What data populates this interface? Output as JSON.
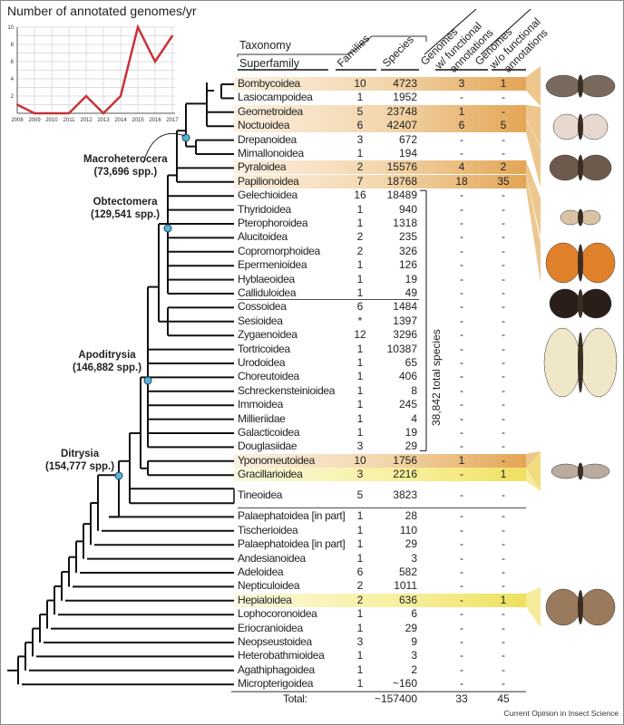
{
  "chart_data": {
    "type": "line",
    "title": "Number of annotated genomes/yr",
    "x": [
      2008,
      2009,
      2010,
      2011,
      2012,
      2013,
      2014,
      2015,
      2016,
      2017
    ],
    "values": [
      1,
      0,
      0,
      0,
      2,
      0,
      2,
      10,
      6,
      9
    ],
    "yticks": [
      2,
      4,
      6,
      8,
      10
    ],
    "ylim": [
      0,
      10
    ],
    "grid": true,
    "color": "#c8323a"
  },
  "header": {
    "taxonomy": "Taxonomy",
    "superfamily": "Superfamily",
    "families": "Families",
    "species": "Species",
    "genomes_with": [
      "Genomes",
      "w/ functional",
      "annotations"
    ],
    "genomes_without": [
      "Genomes",
      "w/o functional",
      "annotations"
    ]
  },
  "clades": [
    {
      "name": "Macroheterocera",
      "spp": "(73,696 spp.)"
    },
    {
      "name": "Obtectomera",
      "spp": "(129,541 spp.)"
    },
    {
      "name": "Apoditrysia",
      "spp": "(146,882 spp.)"
    },
    {
      "name": "Ditrysia",
      "spp": "(154,777 spp.)"
    }
  ],
  "bracket_label": "38,842 total species",
  "rows": [
    {
      "name": "Bombycoidea",
      "families": "10",
      "species": "4723",
      "with": "3",
      "without": "1",
      "highlight": "orange"
    },
    {
      "name": "Lasiocampoidea",
      "families": "1",
      "species": "1952",
      "with": "-",
      "without": "-"
    },
    {
      "name": "Geometroidea",
      "families": "5",
      "species": "23748",
      "with": "1",
      "without": "-",
      "highlight": "orange"
    },
    {
      "name": "Noctuoidea",
      "families": "6",
      "species": "42407",
      "with": "6",
      "without": "5",
      "highlight": "orange"
    },
    {
      "name": "Drepanoidea",
      "families": "3",
      "species": "672",
      "with": "-",
      "without": "-"
    },
    {
      "name": "Mimallonoidea",
      "families": "1",
      "species": "194",
      "with": "-",
      "without": "-"
    },
    {
      "name": "Pyraloidea",
      "families": "2",
      "species": "15576",
      "with": "4",
      "without": "2",
      "highlight": "orange"
    },
    {
      "name": "Papilionoidea",
      "families": "7",
      "species": "18768",
      "with": "18",
      "without": "35",
      "highlight": "orange"
    },
    {
      "name": "Gelechioidea",
      "families": "16",
      "species": "18489",
      "with": "-",
      "without": "-"
    },
    {
      "name": "Thyridoidea",
      "families": "1",
      "species": "940",
      "with": "-",
      "without": "-"
    },
    {
      "name": "Pterophoroidea",
      "families": "1",
      "species": "1318",
      "with": "-",
      "without": "-"
    },
    {
      "name": "Alucitoidea",
      "families": "2",
      "species": "235",
      "with": "-",
      "without": "-"
    },
    {
      "name": "Copromorphoidea",
      "families": "2",
      "species": "326",
      "with": "-",
      "without": "-"
    },
    {
      "name": "Epermenioidea",
      "families": "1",
      "species": "126",
      "with": "-",
      "without": "-"
    },
    {
      "name": "Hyblaeoidea",
      "families": "1",
      "species": "19",
      "with": "-",
      "without": "-"
    },
    {
      "name": "Calliduloidea",
      "families": "1",
      "species": "49",
      "with": "-",
      "without": "-"
    },
    {
      "name": "Cossoidea",
      "families": "6",
      "species": "1484",
      "with": "-",
      "without": "-"
    },
    {
      "name": "Sesioidea",
      "families": "*",
      "species": "1397",
      "with": "-",
      "without": "-"
    },
    {
      "name": "Zygaenoidea",
      "families": "12",
      "species": "3296",
      "with": "-",
      "without": "-"
    },
    {
      "name": "Tortricoidea",
      "families": "1",
      "species": "10387",
      "with": "-",
      "without": "-"
    },
    {
      "name": "Urodoidea",
      "families": "1",
      "species": "65",
      "with": "-",
      "without": "-"
    },
    {
      "name": "Choreutoidea",
      "families": "1",
      "species": "406",
      "with": "-",
      "without": "-"
    },
    {
      "name": "Schreckensteinioidea",
      "families": "1",
      "species": "8",
      "with": "-",
      "without": "-"
    },
    {
      "name": "Immoidea",
      "families": "1",
      "species": "245",
      "with": "-",
      "without": "-"
    },
    {
      "name": "Millieriidae",
      "families": "1",
      "species": "4",
      "with": "-",
      "without": "-"
    },
    {
      "name": "Galacticoidea",
      "families": "1",
      "species": "19",
      "with": "-",
      "without": "-"
    },
    {
      "name": "Douglasiidae",
      "families": "3",
      "species": "29",
      "with": "-",
      "without": "-"
    },
    {
      "name": "Yponomeutoidea",
      "families": "10",
      "species": "1756",
      "with": "1",
      "without": "-",
      "highlight": "orange"
    },
    {
      "name": "Gracillarioidea",
      "families": "3",
      "species": "2216",
      "with": "-",
      "without": "1",
      "highlight": "yellow"
    },
    {
      "name": "Tineoidea",
      "families": "5",
      "species": "3823",
      "with": "-",
      "without": "-"
    },
    {
      "name": "Palaephatoidea [in part]",
      "families": "1",
      "species": "28",
      "with": "-",
      "without": "-"
    },
    {
      "name": "Tischerioidea",
      "families": "1",
      "species": "110",
      "with": "-",
      "without": "-"
    },
    {
      "name": "Palaephatoidea [in part]",
      "families": "1",
      "species": "29",
      "with": "-",
      "without": "-"
    },
    {
      "name": "Andesianoidea",
      "families": "1",
      "species": "3",
      "with": "-",
      "without": "-"
    },
    {
      "name": "Adeloidea",
      "families": "6",
      "species": "582",
      "with": "-",
      "without": "-"
    },
    {
      "name": "Nepticuloidea",
      "families": "2",
      "species": "1011",
      "with": "-",
      "without": "-"
    },
    {
      "name": "Hepialoidea",
      "families": "2",
      "species": "636",
      "with": "-",
      "without": "1",
      "highlight": "yellow"
    },
    {
      "name": "Lophocoronoidea",
      "families": "1",
      "species": "6",
      "with": "-",
      "without": "-"
    },
    {
      "name": "Eriocranioidea",
      "families": "1",
      "species": "29",
      "with": "-",
      "without": "-"
    },
    {
      "name": "Neopseustoidea",
      "families": "3",
      "species": "9",
      "with": "-",
      "without": "-"
    },
    {
      "name": "Heterobathmioidea",
      "families": "1",
      "species": "3",
      "with": "-",
      "without": "-"
    },
    {
      "name": "Agathiphagoidea",
      "families": "1",
      "species": "2",
      "with": "-",
      "without": "-"
    },
    {
      "name": "Micropterigoidea",
      "families": "1",
      "species": "~160",
      "with": "-",
      "without": "-"
    }
  ],
  "total": {
    "label": "Total:",
    "species": "~157400",
    "with": "33",
    "without": "45"
  },
  "credit": "Current Opinion in Insect Science",
  "colors": {
    "orange": "#e3a555",
    "yellow": "#efe060",
    "node": "#5ab4d6"
  }
}
